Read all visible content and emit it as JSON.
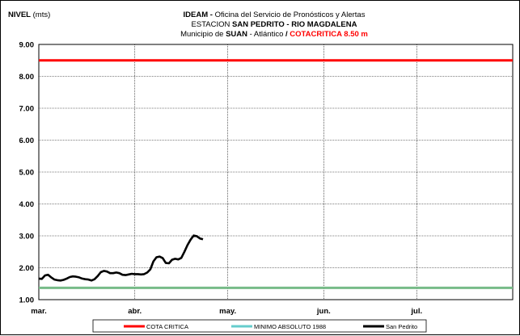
{
  "header": {
    "ylabel_bold": "NIVEL",
    "ylabel_unit": "(mts)",
    "line1_bold": "IDEAM -",
    "line1_rest": "Oficina del Servicio de Pronósticos y Alertas",
    "line2_prefix": "ESTACION",
    "line2_bold": "SAN PEDRITO - RIO MAGDALENA",
    "line3_prefix": "Municipio de",
    "line3_bold": "SUAN",
    "line3_rest": "- Atlántico",
    "line3_sep": "/",
    "line3_red": "COTACRITICA 8.50  m"
  },
  "colors": {
    "cota_critica": "#ff0000",
    "minimo": "#77bb88",
    "legend_minimo": "#66cccc",
    "series": "#000000",
    "grid": "#000000"
  },
  "chart_data": {
    "type": "line",
    "ylim": [
      1.0,
      9.0
    ],
    "yticks": [
      "9.00",
      "8.00",
      "7.00",
      "6.00",
      "5.00",
      "4.00",
      "3.00",
      "2.00",
      "1.00"
    ],
    "ytick_values": [
      9,
      8,
      7,
      6,
      5,
      4,
      3,
      2,
      1
    ],
    "xlim": [
      0,
      153
    ],
    "xticks": [
      "mar.",
      "abr.",
      "may.",
      "jun.",
      "jul."
    ],
    "xtick_days": [
      0,
      31,
      61,
      92,
      122
    ],
    "grid": true,
    "legend_position": "bottom",
    "series": [
      {
        "name": "COTA CRITICA",
        "kind": "constant",
        "value": 8.5
      },
      {
        "name": "MINIMO ABSOLUTO 1988",
        "kind": "constant",
        "value": 1.37
      },
      {
        "name": "San Pedrito",
        "kind": "data",
        "x": [
          0,
          1,
          2,
          3,
          4,
          5,
          6,
          7,
          8,
          9,
          10,
          11,
          12,
          13,
          14,
          15,
          16,
          17,
          18,
          19,
          20,
          21,
          22,
          23,
          24,
          25,
          26,
          27,
          28,
          29,
          30,
          31,
          32,
          33,
          34,
          35,
          36,
          37,
          38,
          39,
          40,
          41,
          42,
          43,
          44,
          45,
          46,
          47,
          48,
          49,
          50,
          51,
          52,
          53
        ],
        "y": [
          1.66,
          1.65,
          1.76,
          1.78,
          1.7,
          1.63,
          1.61,
          1.6,
          1.62,
          1.66,
          1.71,
          1.73,
          1.72,
          1.7,
          1.66,
          1.64,
          1.63,
          1.6,
          1.64,
          1.74,
          1.86,
          1.9,
          1.88,
          1.83,
          1.83,
          1.85,
          1.83,
          1.78,
          1.77,
          1.79,
          1.81,
          1.8,
          1.8,
          1.79,
          1.8,
          1.85,
          1.95,
          2.2,
          2.33,
          2.35,
          2.3,
          2.15,
          2.14,
          2.25,
          2.28,
          2.26,
          2.31,
          2.5,
          2.71,
          2.88,
          3.01,
          2.99,
          2.92,
          2.89
        ]
      }
    ]
  }
}
